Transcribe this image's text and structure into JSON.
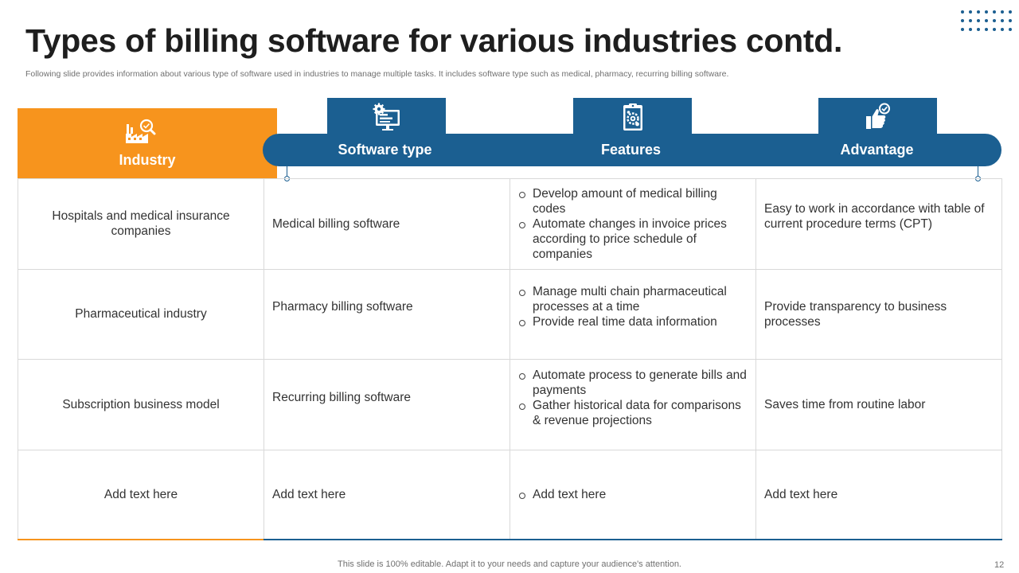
{
  "header": {
    "title": "Types of billing software for various industries contd.",
    "subtitle": "Following slide provides information about various type of software used in industries to manage multiple tasks. It includes software type such as medical, pharmacy, recurring billing software."
  },
  "columns": [
    {
      "label": "Industry",
      "icon": "factory-search-icon"
    },
    {
      "label": "Software type",
      "icon": "computer-gear-icon"
    },
    {
      "label": "Features",
      "icon": "clipboard-gear-icon"
    },
    {
      "label": "Advantage",
      "icon": "thumbs-up-check-icon"
    }
  ],
  "rows": [
    {
      "industry": "Hospitals and medical insurance companies",
      "software": "Medical billing software",
      "features": [
        "Develop amount of medical billing codes",
        "Automate changes in invoice prices according to price schedule of companies"
      ],
      "advantage": "Easy to work in accordance with table of current procedure terms (CPT)"
    },
    {
      "industry": "Pharmaceutical industry",
      "software": "Pharmacy billing software",
      "features": [
        "Manage multi chain pharmaceutical processes at a time",
        "Provide real time data information"
      ],
      "advantage": "Provide transparency  to business processes"
    },
    {
      "industry": "Subscription business model",
      "software": "Recurring billing software",
      "features": [
        "Automate process to generate bills and payments",
        "Gather historical data for comparisons & revenue projections"
      ],
      "advantage": "Saves time from routine labor"
    },
    {
      "industry": "Add text here",
      "software": "Add text here",
      "features": [
        "Add text here"
      ],
      "advantage": "Add text here"
    }
  ],
  "footer": {
    "note": "This slide is 100% editable. Adapt it to your needs and capture your audience's attention.",
    "page": "12"
  },
  "colors": {
    "accent_orange": "#f7941d",
    "accent_blue": "#1b5f91",
    "grid": "#d9d9d9"
  }
}
